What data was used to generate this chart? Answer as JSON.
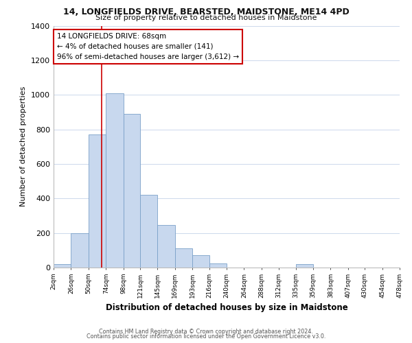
{
  "title": "14, LONGFIELDS DRIVE, BEARSTED, MAIDSTONE, ME14 4PD",
  "subtitle": "Size of property relative to detached houses in Maidstone",
  "xlabel": "Distribution of detached houses by size in Maidstone",
  "ylabel": "Number of detached properties",
  "bar_color": "#c8d8ee",
  "bar_edge_color": "#7aa0c8",
  "vline_color": "#cc0000",
  "vline_x": 68,
  "bin_edges": [
    2,
    26,
    50,
    74,
    98,
    121,
    145,
    169,
    193,
    216,
    240,
    264,
    288,
    312,
    335,
    359,
    383,
    407,
    430,
    454,
    478
  ],
  "bin_heights": [
    20,
    200,
    770,
    1010,
    890,
    420,
    245,
    110,
    70,
    25,
    0,
    0,
    0,
    0,
    20,
    0,
    0,
    0,
    0,
    0
  ],
  "xlim": [
    2,
    478
  ],
  "ylim": [
    0,
    1400
  ],
  "yticks": [
    0,
    200,
    400,
    600,
    800,
    1000,
    1200,
    1400
  ],
  "xtick_labels": [
    "2sqm",
    "26sqm",
    "50sqm",
    "74sqm",
    "98sqm",
    "121sqm",
    "145sqm",
    "169sqm",
    "193sqm",
    "216sqm",
    "240sqm",
    "264sqm",
    "288sqm",
    "312sqm",
    "335sqm",
    "359sqm",
    "383sqm",
    "407sqm",
    "430sqm",
    "454sqm",
    "478sqm"
  ],
  "annotation_title": "14 LONGFIELDS DRIVE: 68sqm",
  "annotation_line1": "← 4% of detached houses are smaller (141)",
  "annotation_line2": "96% of semi-detached houses are larger (3,612) →",
  "annotation_box_color": "#ffffff",
  "annotation_box_edge": "#cc0000",
  "footer1": "Contains HM Land Registry data © Crown copyright and database right 2024.",
  "footer2": "Contains public sector information licensed under the Open Government Licence v3.0.",
  "background_color": "#ffffff",
  "grid_color": "#ccd8ec"
}
